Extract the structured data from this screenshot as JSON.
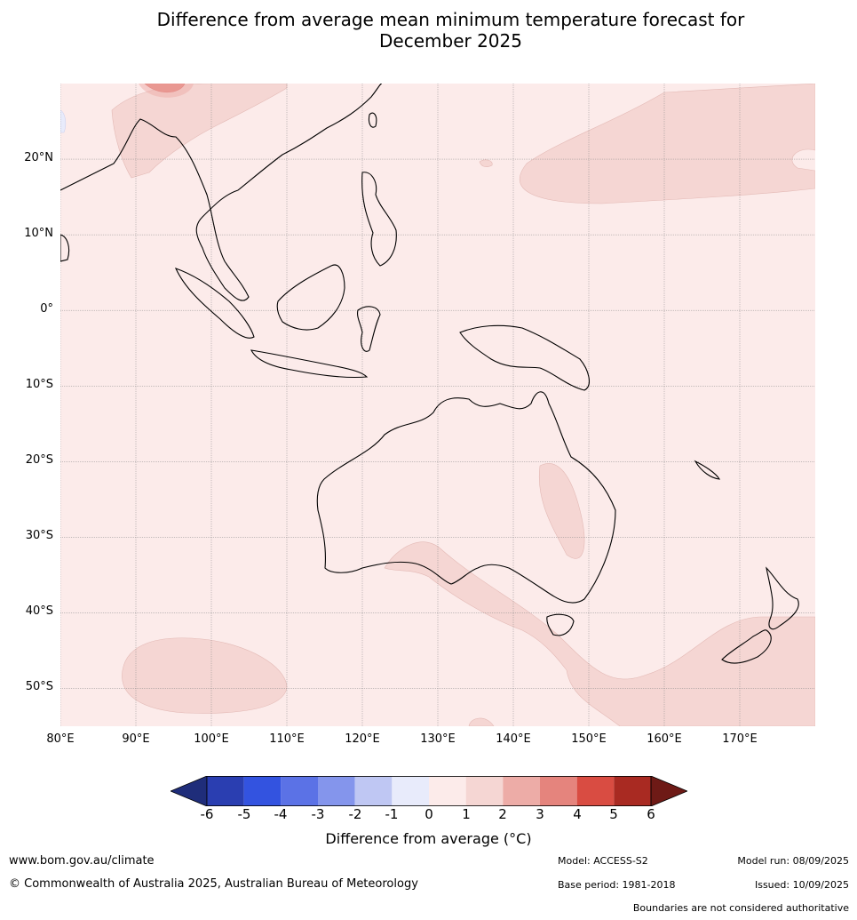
{
  "title_line1": "Difference from average mean minimum temperature forecast for",
  "title_line2": "December 2025",
  "map": {
    "extent": {
      "lon_min": 80,
      "lon_max": 180,
      "lat_min": -55,
      "lat_max": 30
    },
    "lat_labels": [
      "20°N",
      "10°N",
      "0°",
      "10°S",
      "20°S",
      "30°S",
      "40°S",
      "50°S"
    ],
    "lon_labels": [
      "80°E",
      "90°E",
      "100°E",
      "110°E",
      "120°E",
      "130°E",
      "140°E",
      "150°E",
      "160°E",
      "170°E"
    ],
    "background_class": "0 to 1",
    "anomaly_class_shown": "1 to 2"
  },
  "colorbar": {
    "ticks": [
      "-6",
      "-5",
      "-4",
      "-3",
      "-2",
      "-1",
      "0",
      "1",
      "2",
      "3",
      "4",
      "5",
      "6"
    ],
    "colors": [
      "#1f2d7a",
      "#2a3eb1",
      "#3353e0",
      "#5b72e6",
      "#8495ec",
      "#bfc7f3",
      "#e8ebfb",
      "#fcebea",
      "#f5d6d3",
      "#edaca7",
      "#e5847d",
      "#d94c42",
      "#a92a22",
      "#6e1a16"
    ],
    "label": "Difference from average (°C)"
  },
  "footer": {
    "url": "www.bom.gov.au/climate",
    "copyright": "© Commonwealth of Australia 2025, Australian Bureau of Meteorology",
    "model": "Model: ACCESS-S2",
    "base_period": "Base period: 1981-2018",
    "model_run": "Model run: 08/09/2025",
    "issued": "Issued: 10/09/2025",
    "disclaimer": "Boundaries are not considered authoritative"
  }
}
